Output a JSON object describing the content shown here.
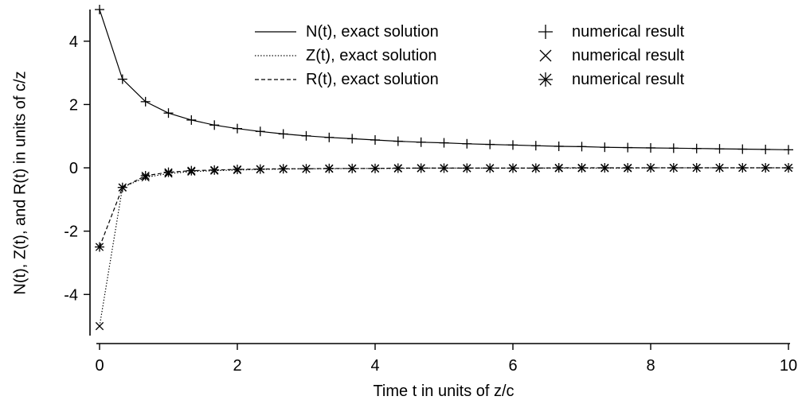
{
  "chart_data": {
    "type": "line",
    "title": "",
    "xlabel": "Time t in units of z/c",
    "ylabel": "N(t), Z(t), and R(t) in units of c/z",
    "xlim": [
      0,
      10
    ],
    "ylim": [
      -5.3,
      5.0
    ],
    "xticks": [
      0,
      2,
      4,
      6,
      8,
      10
    ],
    "yticks": [
      -4,
      -2,
      0,
      2,
      4
    ],
    "xtick_labels": [
      "0",
      "2",
      "4",
      "6",
      "8",
      "10"
    ],
    "ytick_labels": [
      "-4",
      "-2",
      "0",
      "2",
      "4"
    ],
    "grid": false,
    "legend_placement": "top-right",
    "series": [
      {
        "name": "N(t), exact solution",
        "style": "solid",
        "x": [
          0,
          0.333,
          0.667,
          1,
          1.333,
          1.667,
          2,
          2.333,
          2.667,
          3,
          3.333,
          3.667,
          4,
          4.333,
          4.667,
          5,
          5.333,
          5.667,
          6,
          6.333,
          6.667,
          7,
          7.333,
          7.667,
          8,
          8.333,
          8.667,
          9,
          9.333,
          9.667,
          10
        ],
        "y": [
          5.0,
          2.8,
          2.09,
          1.73,
          1.51,
          1.35,
          1.24,
          1.15,
          1.07,
          1.01,
          0.96,
          0.92,
          0.88,
          0.84,
          0.81,
          0.79,
          0.76,
          0.74,
          0.72,
          0.7,
          0.68,
          0.67,
          0.65,
          0.64,
          0.63,
          0.62,
          0.61,
          0.6,
          0.59,
          0.58,
          0.57
        ]
      },
      {
        "name": "Z(t), exact solution",
        "style": "dotted",
        "x": [
          0,
          0.333,
          0.667,
          1,
          1.333,
          1.667,
          2,
          2.333,
          2.667,
          3,
          3.333,
          3.667,
          4,
          4.333,
          4.667,
          5,
          5.333,
          5.667,
          6,
          6.333,
          6.667,
          7,
          7.333,
          7.667,
          8,
          8.333,
          8.667,
          9,
          9.333,
          9.667,
          10
        ],
        "y": [
          -5.0,
          -0.62,
          -0.3,
          -0.18,
          -0.12,
          -0.09,
          -0.07,
          -0.05,
          -0.04,
          -0.03,
          -0.03,
          -0.02,
          -0.02,
          -0.02,
          -0.01,
          -0.01,
          -0.01,
          -0.01,
          -0.01,
          -0.01,
          -0.01,
          -0.01,
          -0.01,
          -0.01,
          0,
          0,
          0,
          0,
          0,
          0,
          0
        ]
      },
      {
        "name": "R(t), exact solution",
        "style": "dashed",
        "x": [
          0,
          0.333,
          0.667,
          1,
          1.333,
          1.667,
          2,
          2.333,
          2.667,
          3,
          3.333,
          3.667,
          4,
          4.333,
          4.667,
          5,
          5.333,
          5.667,
          6,
          6.333,
          6.667,
          7,
          7.333,
          7.667,
          8,
          8.333,
          8.667,
          9,
          9.333,
          9.667,
          10
        ],
        "y": [
          -2.5,
          -0.62,
          -0.25,
          -0.14,
          -0.09,
          -0.07,
          -0.05,
          -0.04,
          -0.03,
          -0.03,
          -0.02,
          -0.02,
          -0.02,
          -0.01,
          -0.01,
          -0.01,
          -0.01,
          -0.01,
          -0.01,
          -0.01,
          0,
          0,
          0,
          0,
          0,
          0,
          0,
          0,
          0,
          0,
          0
        ]
      },
      {
        "name": "numerical result",
        "marker": "plus",
        "x": [
          0,
          0.333,
          0.667,
          1,
          1.333,
          1.667,
          2,
          2.333,
          2.667,
          3,
          3.333,
          3.667,
          4,
          4.333,
          4.667,
          5,
          5.333,
          5.667,
          6,
          6.333,
          6.667,
          7,
          7.333,
          7.667,
          8,
          8.333,
          8.667,
          9,
          9.333,
          9.667,
          10
        ],
        "y": [
          5.0,
          2.8,
          2.09,
          1.73,
          1.51,
          1.35,
          1.24,
          1.15,
          1.07,
          1.01,
          0.96,
          0.92,
          0.88,
          0.84,
          0.81,
          0.79,
          0.76,
          0.74,
          0.72,
          0.7,
          0.68,
          0.67,
          0.65,
          0.64,
          0.63,
          0.62,
          0.61,
          0.6,
          0.59,
          0.58,
          0.57
        ]
      },
      {
        "name": "numerical result",
        "marker": "cross",
        "x": [
          0,
          0.333,
          0.667,
          1,
          1.333,
          1.667,
          2,
          2.333,
          2.667,
          3,
          3.333,
          3.667,
          4,
          4.333,
          4.667,
          5,
          5.333,
          5.667,
          6,
          6.333,
          6.667,
          7,
          7.333,
          7.667,
          8,
          8.333,
          8.667,
          9,
          9.333,
          9.667,
          10
        ],
        "y": [
          -5.0,
          -0.62,
          -0.3,
          -0.18,
          -0.12,
          -0.09,
          -0.07,
          -0.05,
          -0.04,
          -0.03,
          -0.03,
          -0.02,
          -0.02,
          -0.02,
          -0.01,
          -0.01,
          -0.01,
          -0.01,
          -0.01,
          -0.01,
          -0.01,
          -0.01,
          -0.01,
          -0.01,
          0,
          0,
          0,
          0,
          0,
          0,
          0
        ]
      },
      {
        "name": "numerical result",
        "marker": "asterisk",
        "x": [
          0,
          0.333,
          0.667,
          1,
          1.333,
          1.667,
          2,
          2.333,
          2.667,
          3,
          3.333,
          3.667,
          4,
          4.333,
          4.667,
          5,
          5.333,
          5.667,
          6,
          6.333,
          6.667,
          7,
          7.333,
          7.667,
          8,
          8.333,
          8.667,
          9,
          9.333,
          9.667,
          10
        ],
        "y": [
          -2.5,
          -0.62,
          -0.25,
          -0.14,
          -0.09,
          -0.07,
          -0.05,
          -0.04,
          -0.03,
          -0.03,
          -0.02,
          -0.02,
          -0.02,
          -0.01,
          -0.01,
          -0.01,
          -0.01,
          -0.01,
          -0.01,
          -0.01,
          0,
          0,
          0,
          0,
          0,
          0,
          0,
          0,
          0,
          0,
          0
        ]
      }
    ],
    "legend": [
      {
        "label": "N(t), exact solution",
        "line": "solid"
      },
      {
        "label": "Z(t), exact solution",
        "line": "dotted"
      },
      {
        "label": "R(t), exact solution",
        "line": "dashed"
      },
      {
        "label": "numerical result",
        "marker": "plus"
      },
      {
        "label": "numerical result",
        "marker": "cross"
      },
      {
        "label": "numerical result",
        "marker": "asterisk"
      }
    ]
  },
  "colors": {
    "axis": "#000000",
    "series": "#000000",
    "background": "#ffffff"
  }
}
